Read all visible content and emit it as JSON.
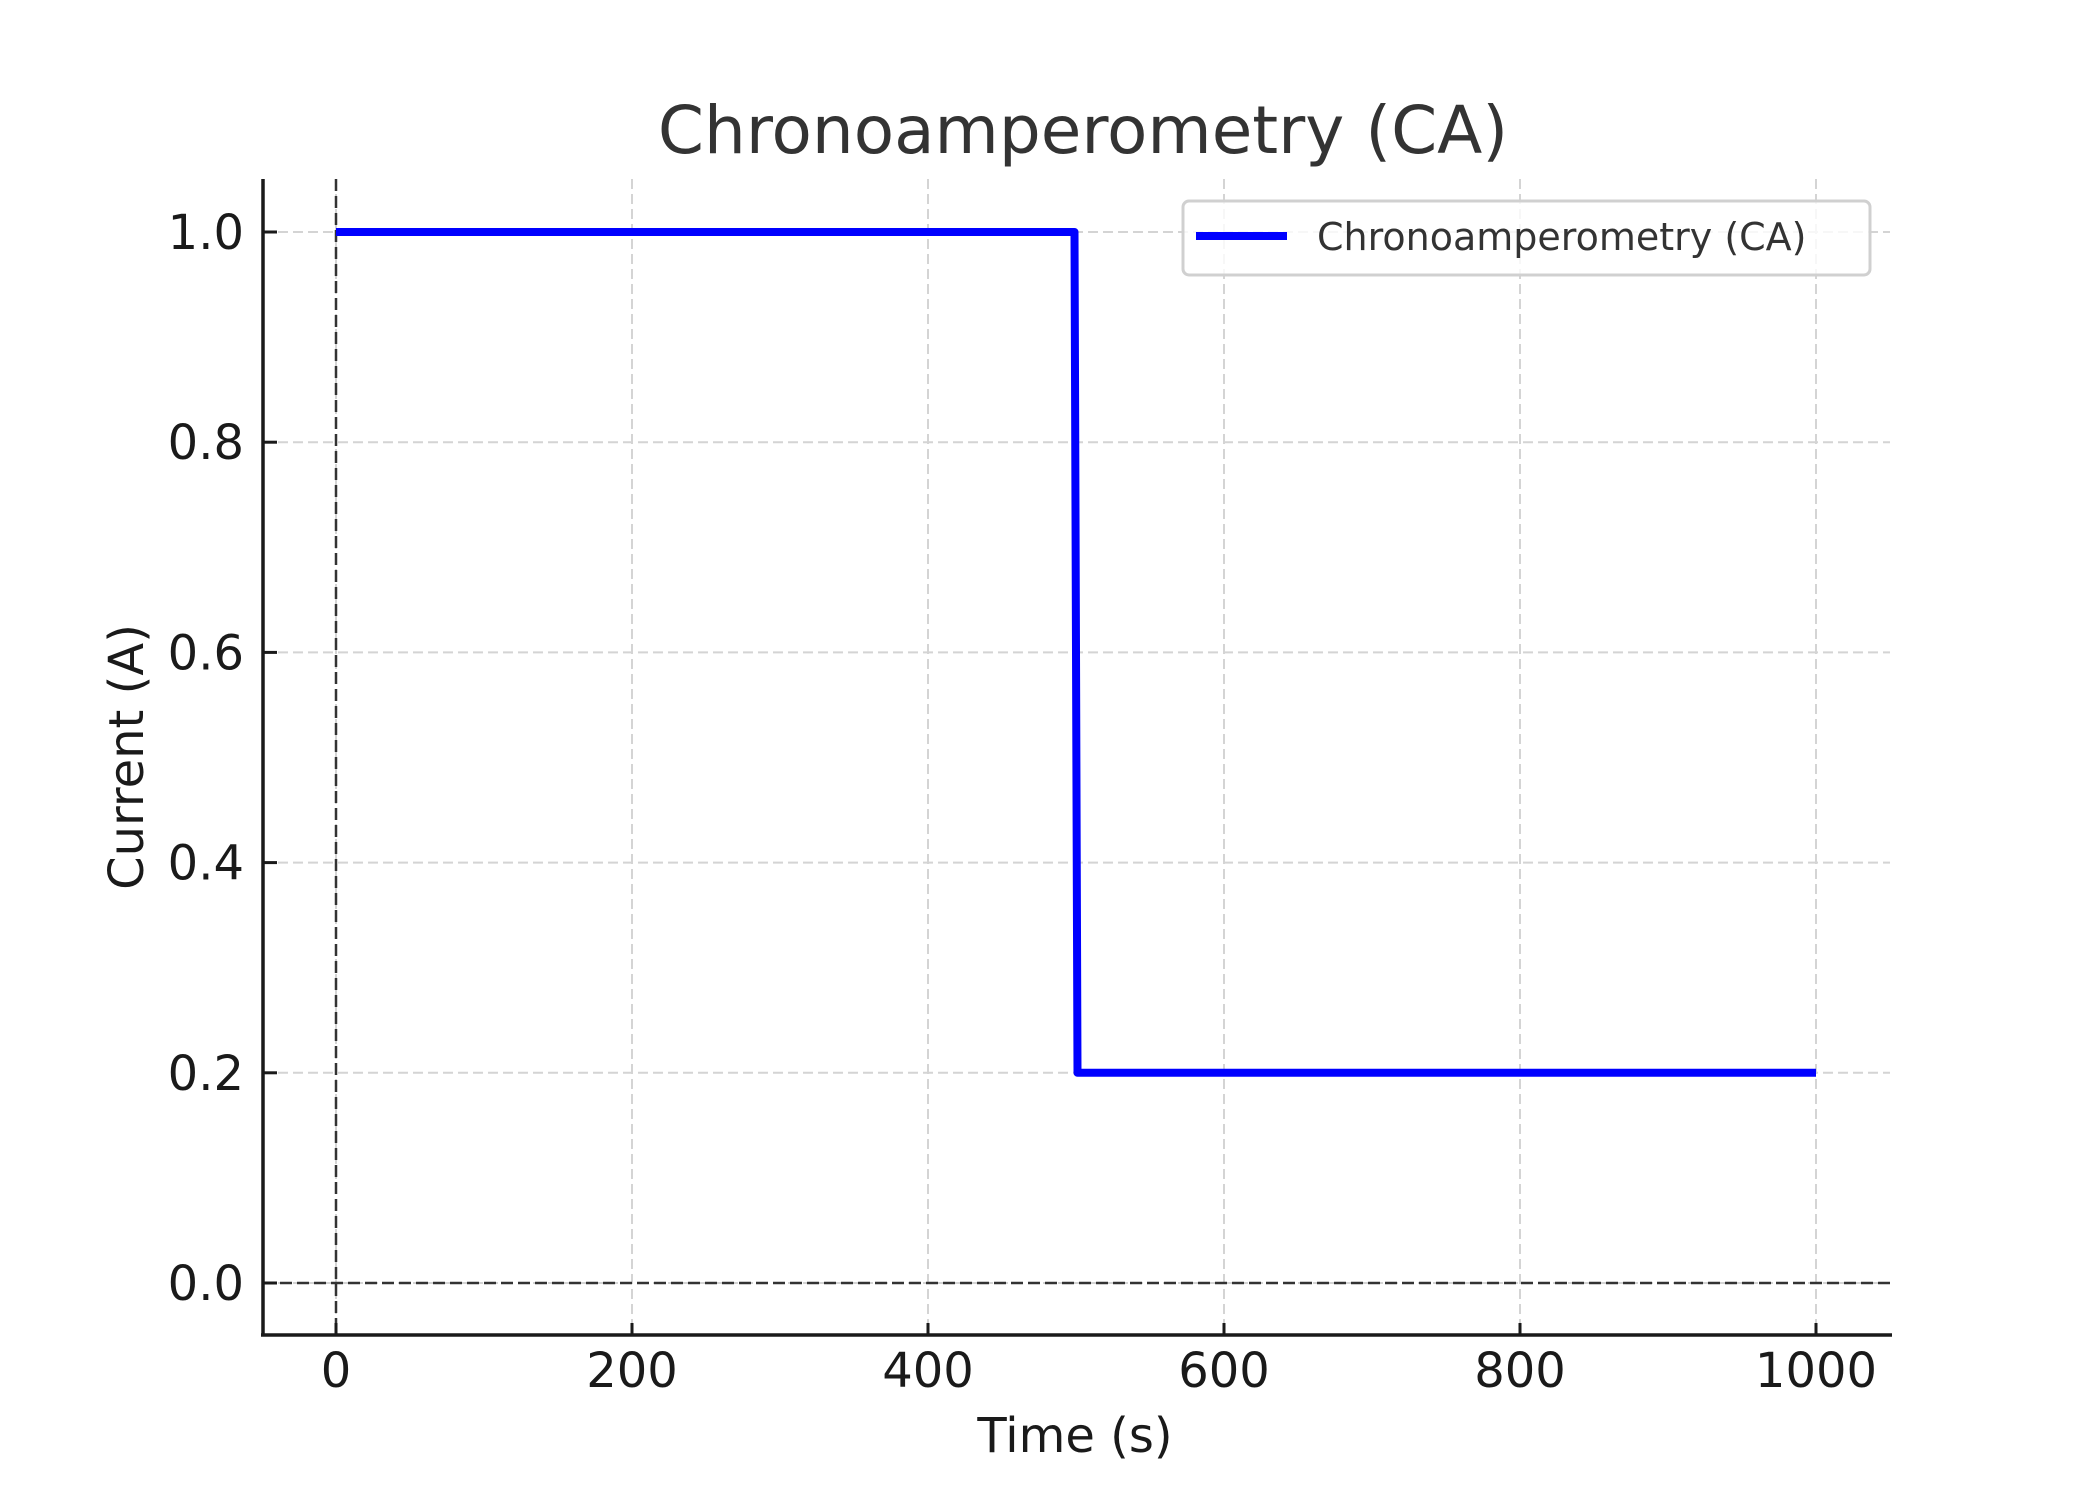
{
  "chart_data": {
    "type": "line",
    "title": "Chronoamperometry (CA)",
    "xlabel": "Time (s)",
    "ylabel": "Current (A)",
    "xlim": [
      -50,
      1050
    ],
    "ylim": [
      -0.05,
      1.05
    ],
    "xticks": [
      0,
      200,
      400,
      600,
      800,
      1000
    ],
    "xtick_labels": [
      "0",
      "200",
      "400",
      "600",
      "800",
      "1000"
    ],
    "yticks": [
      0.0,
      0.2,
      0.4,
      0.6,
      0.8,
      1.0
    ],
    "ytick_labels": [
      "0.0",
      "0.2",
      "0.4",
      "0.6",
      "0.8",
      "1.0"
    ],
    "grid": true,
    "grid_style": "dashed",
    "reference_lines": [
      {
        "orientation": "horizontal",
        "value": 0.0,
        "style": "dashed",
        "color": "#333333"
      },
      {
        "orientation": "vertical",
        "value": 0,
        "style": "dashed",
        "color": "#333333"
      }
    ],
    "legend": {
      "position": "upper right",
      "entries": [
        "Chronoamperometry (CA)"
      ]
    },
    "series": [
      {
        "name": "Chronoamperometry (CA)",
        "color": "#0000ff",
        "x": [
          0,
          499,
          501,
          1000
        ],
        "y": [
          1.0,
          1.0,
          0.2,
          0.2
        ]
      }
    ]
  }
}
